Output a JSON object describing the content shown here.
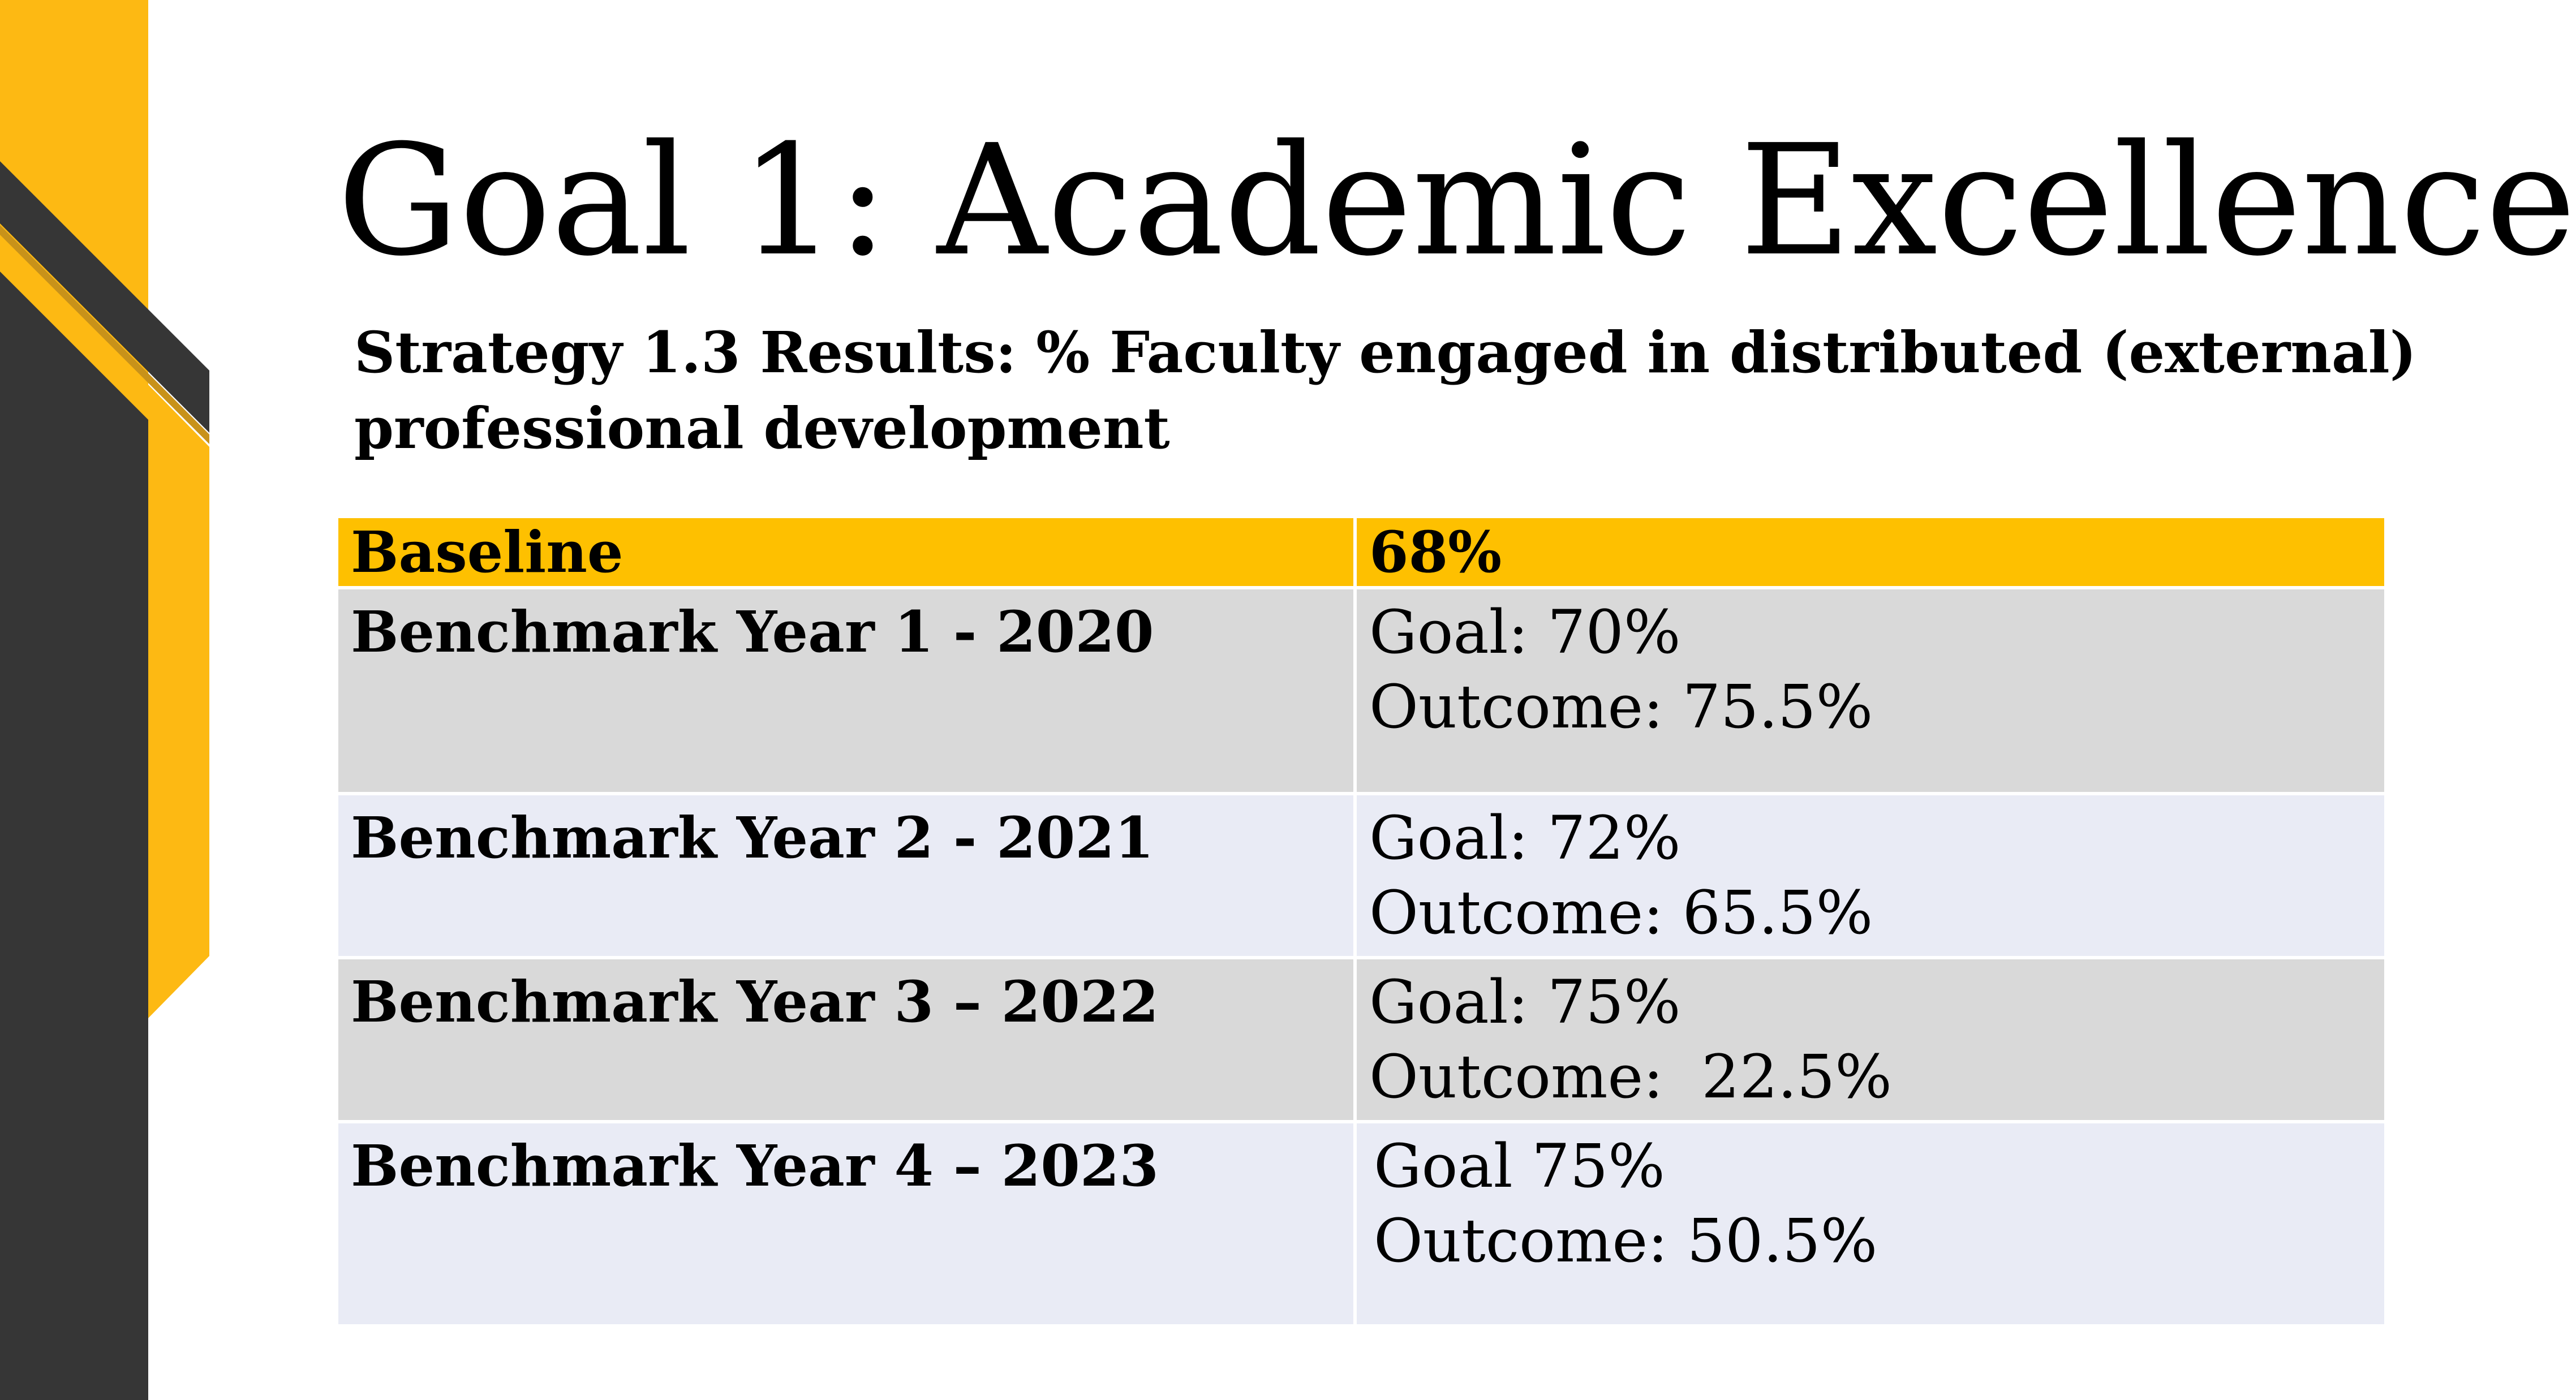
{
  "slide": {
    "title": "Goal 1:  Academic Excellence",
    "subtitle": "Strategy 1.3 Results:  % Faculty engaged in distributed (external) professional development",
    "colors": {
      "accent_yellow": "#fdb913",
      "dark_gray": "#363636",
      "header_yellow": "#fec000",
      "row_gray": "#d9d9d9",
      "row_lavender": "#e9ebf5"
    }
  },
  "table": {
    "header": {
      "label": "Baseline",
      "value": "68%"
    },
    "rows": [
      {
        "label": "Benchmark Year 1 - 2020",
        "goal": "Goal: 70%",
        "outcome": "Outcome: 75.5%"
      },
      {
        "label": "Benchmark Year 2 - 2021",
        "goal": "Goal: 72%",
        "outcome": "Outcome: 65.5%"
      },
      {
        "label": "Benchmark Year 3 – 2022",
        "goal": "Goal: 75%",
        "outcome": "Outcome:  22.5%"
      },
      {
        "label": "Benchmark Year 4 – 2023",
        "goal": "Goal 75%",
        "outcome": "Outcome: 50.5%"
      }
    ]
  }
}
